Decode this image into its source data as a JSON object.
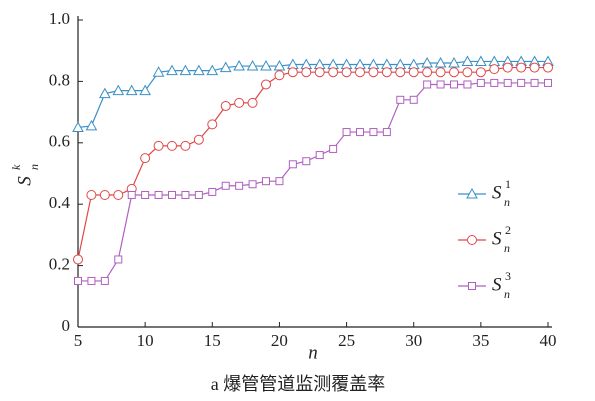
{
  "chart_data": {
    "type": "line",
    "caption": "a 爆管管道监测覆盖率",
    "x_label": "n",
    "y_label": {
      "main": "S",
      "sub": "n",
      "sup": "k"
    },
    "x": [
      5,
      6,
      7,
      8,
      9,
      10,
      11,
      12,
      13,
      14,
      15,
      16,
      17,
      18,
      19,
      20,
      21,
      22,
      23,
      24,
      25,
      26,
      27,
      28,
      29,
      30,
      31,
      32,
      33,
      34,
      35,
      36,
      37,
      38,
      39,
      40
    ],
    "xlim": [
      5,
      40
    ],
    "xticks": [
      5,
      10,
      15,
      20,
      25,
      30,
      35,
      40
    ],
    "ylim": [
      0,
      1
    ],
    "yticks": [
      0,
      0.2,
      0.4,
      0.6,
      0.8,
      {
        "value": 1,
        "label": "1.0"
      }
    ],
    "legend": "right",
    "series": [
      {
        "name": "S",
        "sub": "n",
        "sup": "1",
        "color": "#3a8fc7",
        "marker": "triangle",
        "values": [
          0.65,
          0.655,
          0.76,
          0.77,
          0.77,
          0.77,
          0.83,
          0.835,
          0.835,
          0.835,
          0.835,
          0.845,
          0.85,
          0.85,
          0.85,
          0.85,
          0.855,
          0.855,
          0.855,
          0.855,
          0.855,
          0.855,
          0.855,
          0.855,
          0.855,
          0.855,
          0.86,
          0.86,
          0.86,
          0.865,
          0.865,
          0.865,
          0.865,
          0.865,
          0.865,
          0.865
        ]
      },
      {
        "name": "S",
        "sub": "n",
        "sup": "2",
        "color": "#e04848",
        "marker": "circle",
        "values": [
          0.22,
          0.43,
          0.43,
          0.43,
          0.45,
          0.55,
          0.59,
          0.59,
          0.59,
          0.61,
          0.66,
          0.72,
          0.73,
          0.73,
          0.79,
          0.82,
          0.83,
          0.83,
          0.83,
          0.83,
          0.83,
          0.83,
          0.83,
          0.83,
          0.83,
          0.83,
          0.83,
          0.83,
          0.83,
          0.83,
          0.83,
          0.84,
          0.845,
          0.845,
          0.845,
          0.845
        ]
      },
      {
        "name": "S",
        "sub": "n",
        "sup": "3",
        "color": "#b060c0",
        "marker": "square",
        "values": [
          0.15,
          0.15,
          0.15,
          0.22,
          0.43,
          0.43,
          0.43,
          0.43,
          0.43,
          0.43,
          0.44,
          0.46,
          0.46,
          0.465,
          0.475,
          0.475,
          0.53,
          0.54,
          0.56,
          0.58,
          0.635,
          0.635,
          0.635,
          0.635,
          0.74,
          0.74,
          0.79,
          0.79,
          0.79,
          0.79,
          0.795,
          0.795,
          0.795,
          0.795,
          0.795,
          0.795
        ]
      }
    ]
  }
}
